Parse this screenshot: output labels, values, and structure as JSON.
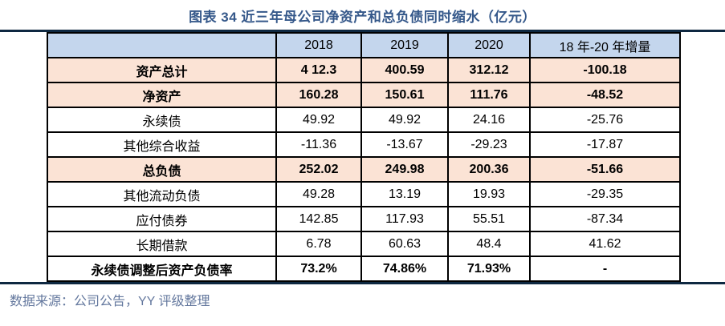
{
  "title": "图表 34 近三年母公司净资产和总负债同时缩水（亿元）",
  "table": {
    "columns": [
      "",
      "2018",
      "2019",
      "2020",
      "18 年-20 年增量"
    ],
    "rows": [
      {
        "label": "资产总计",
        "values": [
          "4 12.3",
          "400.59",
          "312.12"
        ],
        "delta": "-100.18",
        "delta_negative": true,
        "emphasis": true,
        "highlight": true
      },
      {
        "label": "净资产",
        "values": [
          "160.28",
          "150.61",
          "111.76"
        ],
        "delta": "-48.52",
        "delta_negative": true,
        "emphasis": true,
        "highlight": true
      },
      {
        "label": "永续债",
        "values": [
          "49.92",
          "49.92",
          "24.16"
        ],
        "delta": "-25.76",
        "delta_negative": true,
        "emphasis": false,
        "highlight": false
      },
      {
        "label": "其他综合收益",
        "values": [
          "-11.36",
          "-13.67",
          "-29.23"
        ],
        "delta": "-17.87",
        "delta_negative": true,
        "emphasis": false,
        "highlight": false
      },
      {
        "label": "总负债",
        "values": [
          "252.02",
          "249.98",
          "200.36"
        ],
        "delta": "-51.66",
        "delta_negative": true,
        "emphasis": true,
        "highlight": true
      },
      {
        "label": "其他流动负债",
        "values": [
          "49.28",
          "13.19",
          "19.93"
        ],
        "delta": "-29.35",
        "delta_negative": true,
        "emphasis": false,
        "highlight": false
      },
      {
        "label": "应付债券",
        "values": [
          "142.85",
          "117.93",
          "55.51"
        ],
        "delta": "-87.34",
        "delta_negative": true,
        "emphasis": false,
        "highlight": false
      },
      {
        "label": "长期借款",
        "values": [
          "6.78",
          "60.63",
          "48.4"
        ],
        "delta": "41.62",
        "delta_negative": false,
        "emphasis": false,
        "highlight": false
      },
      {
        "label": "永续债调整后资产负债率",
        "values": [
          "73.2%",
          "74.86%",
          "71.93%"
        ],
        "delta": "-",
        "delta_negative": false,
        "emphasis": true,
        "highlight": false
      }
    ]
  },
  "footer": {
    "source": "数据来源：公司公告，YY 评级整理"
  },
  "colors": {
    "title_text": "#35588A",
    "rule": "#0E2841",
    "header_fill": "#C4D6ED",
    "highlight_fill": "#FBE3D5",
    "negative_value": "#FF0000",
    "source_text": "#64789E",
    "border": "#000000"
  }
}
